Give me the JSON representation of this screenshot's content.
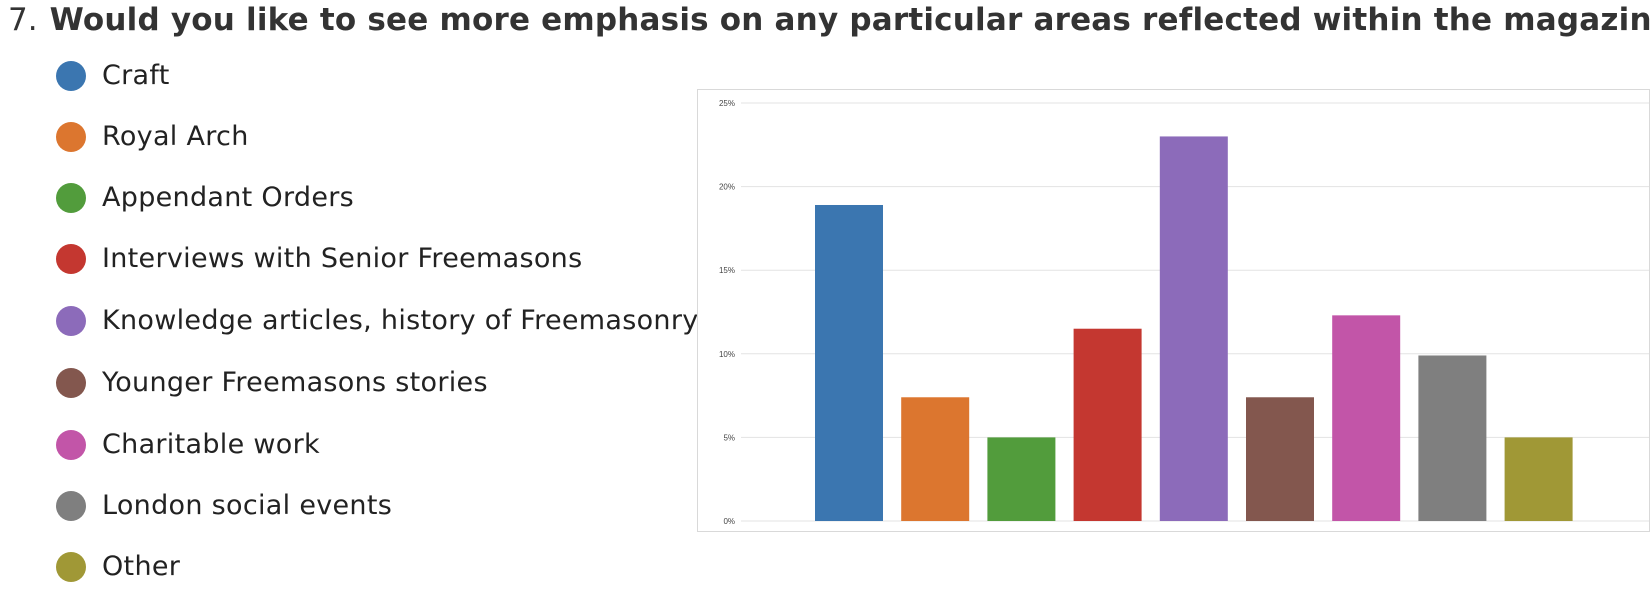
{
  "question": {
    "number": "7.",
    "text": "Would you like to see more emphasis on any particular areas reflected within the magazine?"
  },
  "legend": {
    "items": [
      {
        "label": "Craft",
        "color": "#3b76b0"
      },
      {
        "label": "Royal Arch",
        "color": "#dc762f"
      },
      {
        "label": "Appendant Orders",
        "color": "#529c3c"
      },
      {
        "label": "Interviews with Senior Freemasons",
        "color": "#c43730"
      },
      {
        "label": "Knowledge articles, history of Freemasonry",
        "color": "#8c6bba"
      },
      {
        "label": "Younger Freemasons stories",
        "color": "#83574e"
      },
      {
        "label": "Charitable work",
        "color": "#c255a8"
      },
      {
        "label": "London social events",
        "color": "#7f7f7f"
      },
      {
        "label": "Other",
        "color": "#a09836"
      }
    ]
  },
  "chart_data": {
    "type": "bar",
    "categories": [
      "Craft",
      "Royal Arch",
      "Appendant Orders",
      "Interviews with Senior Freemasons",
      "Knowledge articles, history of Freemasonry",
      "Younger Freemasons stories",
      "Charitable work",
      "London social events",
      "Other"
    ],
    "values": [
      18.9,
      7.4,
      5.0,
      11.5,
      23.0,
      7.4,
      12.3,
      9.9,
      5.0
    ],
    "colors": [
      "#3b76b0",
      "#dc762f",
      "#529c3c",
      "#c43730",
      "#8c6bba",
      "#83574e",
      "#c255a8",
      "#7f7f7f",
      "#a09836"
    ],
    "ylim": [
      0,
      25
    ],
    "yticks": [
      0,
      5,
      10,
      15,
      20,
      25
    ],
    "ytick_labels": [
      "0%",
      "5%",
      "10%",
      "15%",
      "20%",
      "25%"
    ],
    "grid": true,
    "legend_placement": "left",
    "title": "",
    "xlabel": "",
    "ylabel": ""
  }
}
